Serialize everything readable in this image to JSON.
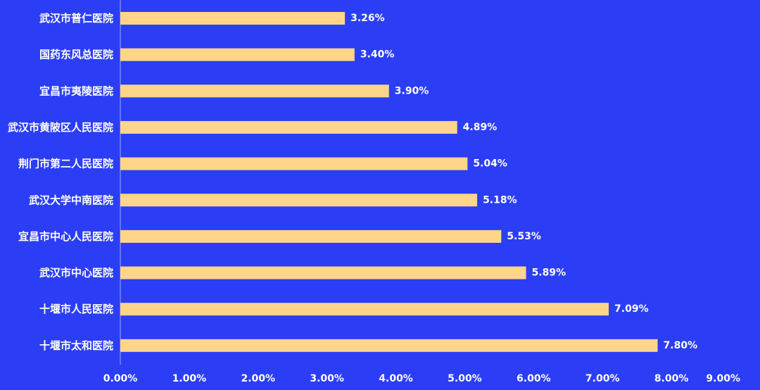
{
  "chart_data": {
    "type": "bar",
    "orientation": "horizontal",
    "categories": [
      "武汉市普仁医院",
      "国药东风总医院",
      "宜昌市夷陵医院",
      "武汉市黄陂区人民医院",
      "荆门市第二人民医院",
      "武汉大学中南医院",
      "宜昌市中心人民医院",
      "武汉市中心医院",
      "十堰市人民医院",
      "十堰市太和医院"
    ],
    "values": [
      3.26,
      3.4,
      3.9,
      4.89,
      5.04,
      5.18,
      5.53,
      5.89,
      7.09,
      7.8
    ],
    "value_labels": [
      "3.26%",
      "3.40%",
      "3.90%",
      "4.89%",
      "5.04%",
      "5.18%",
      "5.53%",
      "5.89%",
      "7.09%",
      "7.80%"
    ],
    "xlim": [
      0,
      9
    ],
    "x_ticks": [
      0,
      1,
      2,
      3,
      4,
      5,
      6,
      7,
      8,
      9
    ],
    "x_tick_labels": [
      "0.00%",
      "1.00%",
      "2.00%",
      "3.00%",
      "4.00%",
      "5.00%",
      "6.00%",
      "7.00%",
      "8.00%",
      "9.00%"
    ],
    "title": "",
    "xlabel": "",
    "ylabel": "",
    "grid": false,
    "legend": "none",
    "colors": {
      "background": "#2b3ef5",
      "bar": "#ffd58a",
      "text": "#ffffff",
      "axis": "#9aa6ff"
    }
  }
}
